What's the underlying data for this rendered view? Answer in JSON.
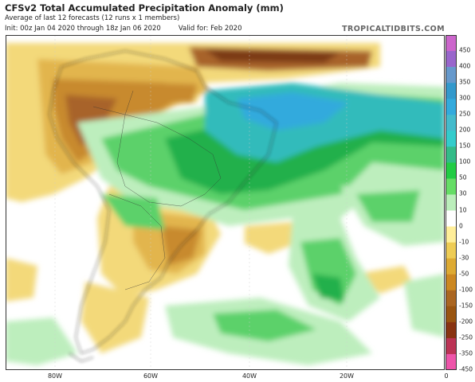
{
  "header": {
    "title": "CFSv2 Total Accumulated Precipitation Anomaly (mm)",
    "subtitle": "Average of last 12 forecasts (12 runs x 1 members)",
    "init": "Init: 00z Jan 04 2020 through 18z Jan 06 2020",
    "valid": "Valid for: Feb 2020",
    "brand": "TROPICALTIDBITS.COM"
  },
  "map": {
    "region": "South America and South Atlantic",
    "longitude_labels": [
      "80W",
      "60W",
      "40W",
      "20W",
      "0"
    ]
  },
  "colorbar": {
    "labels": [
      "450",
      "400",
      "350",
      "300",
      "250",
      "200",
      "150",
      "100",
      "50",
      "30",
      "10",
      "0",
      "-10",
      "-30",
      "-50",
      "-100",
      "-150",
      "-200",
      "-250",
      "-350",
      "-450"
    ],
    "colors": [
      "#cc66cc",
      "#9966cc",
      "#6699cc",
      "#3399cc",
      "#33aadd",
      "#44bbcc",
      "#33cccc",
      "#33bb88",
      "#22cc44",
      "#66dd66",
      "#bbeebb",
      "#ffffff",
      "#ffee99",
      "#eecc55",
      "#ddaa33",
      "#cc8822",
      "#aa6622",
      "#995511",
      "#883311",
      "#bb3355",
      "#ee55aa"
    ]
  }
}
